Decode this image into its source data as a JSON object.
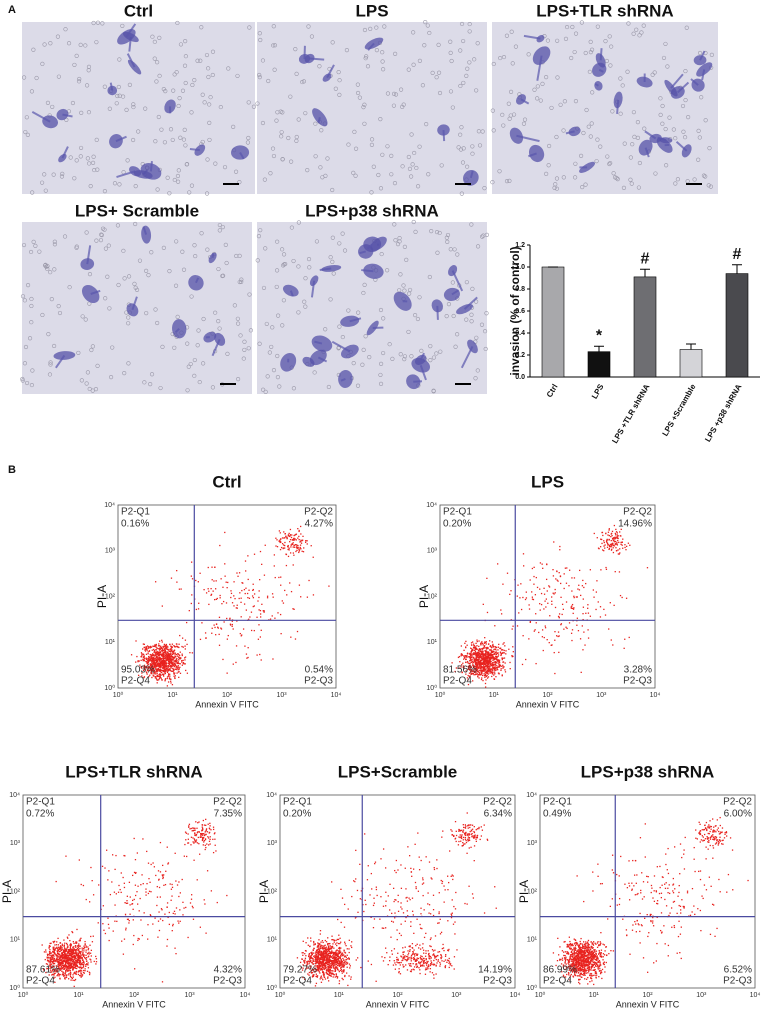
{
  "panel_labels": [
    "A",
    "B"
  ],
  "micrographs": [
    {
      "title": "Ctrl"
    },
    {
      "title": "LPS"
    },
    {
      "title": "LPS+TLR shRNA"
    },
    {
      "title": "LPS+ Scramble"
    },
    {
      "title": "LPS+p38 shRNA"
    }
  ],
  "chart_data": {
    "type": "bar",
    "y_label": "invasion (% of control)",
    "categories": [
      "Ctrl",
      "LPS",
      "LPS +TLR shRNA",
      "LPS +Scramble",
      "LPS +p38 shRNA"
    ],
    "values": [
      1.0,
      0.23,
      0.91,
      0.25,
      0.94
    ],
    "errors": [
      0.0,
      0.05,
      0.07,
      0.05,
      0.08
    ],
    "colors": [
      "#a8a8ab",
      "#111111",
      "#6e6e72",
      "#d4d4d8",
      "#4a4a4e"
    ],
    "ylim": [
      0,
      1.2
    ],
    "yticks": [
      {
        "value": 0,
        "label": "0.0"
      },
      {
        "value": 0.2,
        "label": "0.2"
      },
      {
        "value": 0.4,
        "label": "0.4"
      },
      {
        "value": 0.6,
        "label": "0.6"
      },
      {
        "value": 0.8,
        "label": "0.8"
      },
      {
        "value": 1.0,
        "label": "1.0"
      },
      {
        "value": 1.2,
        "label": "1.2"
      }
    ],
    "annotations": [
      {
        "category": "LPS",
        "text": "*"
      },
      {
        "category": "LPS +TLR shRNA",
        "text": "#"
      },
      {
        "category": "LPS +p38 shRNA",
        "text": "#"
      }
    ]
  },
  "flow_x_label": "Annexin V FITC",
  "flow_y_label": "PI-A",
  "flow_axis_ticks": [
    "10⁰",
    "10¹",
    "10²",
    "10³",
    "10⁴"
  ],
  "flow_plots": [
    {
      "title": "Ctrl",
      "quadrants": [
        {
          "name": "P2-Q1",
          "value": "0.16%"
        },
        {
          "name": "P2-Q2",
          "value": "4.27%"
        },
        {
          "name": "P2-Q3",
          "value": "0.54%"
        },
        {
          "name": "P2-Q4",
          "value": "95.03%"
        }
      ]
    },
    {
      "title": "LPS",
      "quadrants": [
        {
          "name": "P2-Q1",
          "value": "0.20%"
        },
        {
          "name": "P2-Q2",
          "value": "14.96%"
        },
        {
          "name": "P2-Q3",
          "value": "3.28%"
        },
        {
          "name": "P2-Q4",
          "value": "81.56%"
        }
      ]
    },
    {
      "title": "LPS+TLR shRNA",
      "quadrants": [
        {
          "name": "P2-Q1",
          "value": "0.72%"
        },
        {
          "name": "P2-Q2",
          "value": "7.35%"
        },
        {
          "name": "P2-Q3",
          "value": "4.32%"
        },
        {
          "name": "P2-Q4",
          "value": "87.61%"
        }
      ]
    },
    {
      "title": "LPS+Scramble",
      "quadrants": [
        {
          "name": "P2-Q1",
          "value": "0.20%"
        },
        {
          "name": "P2-Q2",
          "value": "6.34%"
        },
        {
          "name": "P2-Q3",
          "value": "14.19%"
        },
        {
          "name": "P2-Q4",
          "value": "79.27%"
        }
      ]
    },
    {
      "title": "LPS+p38 shRNA",
      "quadrants": [
        {
          "name": "P2-Q1",
          "value": "0.49%"
        },
        {
          "name": "P2-Q2",
          "value": "6.00%"
        },
        {
          "name": "P2-Q3",
          "value": "6.52%"
        },
        {
          "name": "P2-Q4",
          "value": "86.99%"
        }
      ]
    }
  ]
}
